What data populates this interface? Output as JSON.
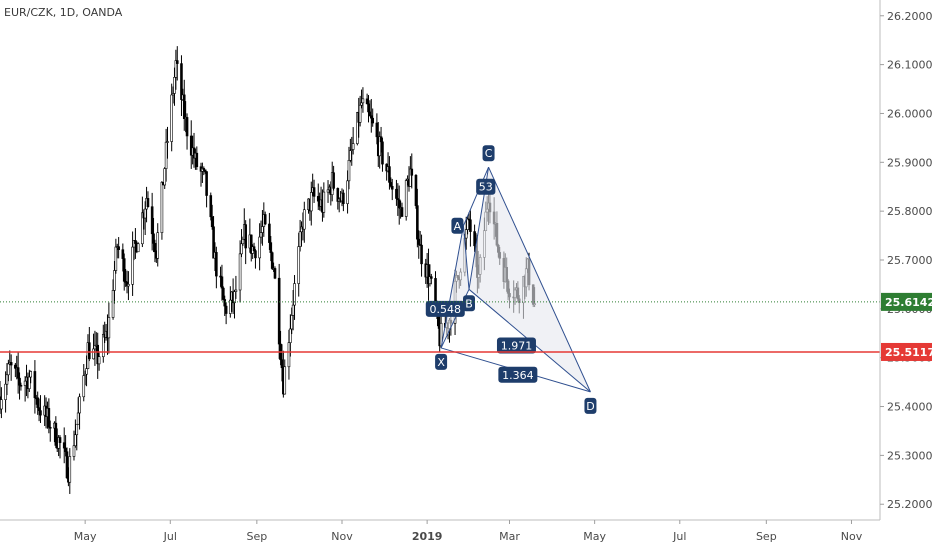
{
  "symbol_label": "EUR/CZK, 1D, OANDA",
  "colors": {
    "candle": "#000000",
    "pattern_line": "#2f4f8f",
    "pattern_fill": "#e6e8ee",
    "point_label_bg": "#1e3d6b",
    "green_tag": "#2e7d32",
    "red_tag": "#e53935",
    "green_line": "#2e7d32",
    "red_line": "#e53935"
  },
  "chart_data": {
    "type": "candlestick",
    "title": "",
    "xlabel": "",
    "ylabel": "",
    "ylim": [
      25.18,
      26.22
    ],
    "y_ticks": [
      "26.20000",
      "26.10000",
      "26.00000",
      "25.90000",
      "25.80000",
      "25.70000",
      "25.60000",
      "25.50000",
      "25.40000",
      "25.30000",
      "25.20000"
    ],
    "y_tick_values": [
      26.2,
      26.1,
      26.0,
      25.9,
      25.8,
      25.7,
      25.6,
      25.5,
      25.4,
      25.3,
      25.2
    ],
    "x_ticks": [
      "May",
      "Jul",
      "Sep",
      "Nov",
      "2019",
      "Mar",
      "May",
      "Jul",
      "Sep",
      "Nov"
    ],
    "x_tick_dates": [
      "2018-05-01",
      "2018-07-01",
      "2018-09-01",
      "2018-11-01",
      "2019-01-01",
      "2019-03-01",
      "2019-05-01",
      "2019-07-01",
      "2019-09-01",
      "2019-11-01"
    ],
    "x_range": [
      "2018-03-01",
      "2019-11-20"
    ],
    "price_tags": [
      {
        "value": "25.61424",
        "color": "green",
        "line": "dotted"
      },
      {
        "value": "25.51173",
        "color": "red",
        "line": "solid"
      }
    ],
    "price_path": [
      [
        "2018-03-01",
        25.42
      ],
      [
        "2018-03-08",
        25.48
      ],
      [
        "2018-03-15",
        25.45
      ],
      [
        "2018-03-22",
        25.46
      ],
      [
        "2018-03-29",
        25.4
      ],
      [
        "2018-04-05",
        25.37
      ],
      [
        "2018-04-12",
        25.33
      ],
      [
        "2018-04-19",
        25.27
      ],
      [
        "2018-04-26",
        25.38
      ],
      [
        "2018-05-03",
        25.52
      ],
      [
        "2018-05-10",
        25.5
      ],
      [
        "2018-05-17",
        25.55
      ],
      [
        "2018-05-24",
        25.73
      ],
      [
        "2018-05-31",
        25.66
      ],
      [
        "2018-06-07",
        25.74
      ],
      [
        "2018-06-14",
        25.83
      ],
      [
        "2018-06-21",
        25.72
      ],
      [
        "2018-06-28",
        25.92
      ],
      [
        "2018-07-05",
        26.1
      ],
      [
        "2018-07-12",
        25.98
      ],
      [
        "2018-07-19",
        25.9
      ],
      [
        "2018-07-26",
        25.86
      ],
      [
        "2018-08-02",
        25.7
      ],
      [
        "2018-08-09",
        25.6
      ],
      [
        "2018-08-16",
        25.62
      ],
      [
        "2018-08-23",
        25.75
      ],
      [
        "2018-08-30",
        25.72
      ],
      [
        "2018-09-06",
        25.77
      ],
      [
        "2018-09-13",
        25.69
      ],
      [
        "2018-09-20",
        25.45
      ],
      [
        "2018-09-27",
        25.62
      ],
      [
        "2018-10-04",
        25.78
      ],
      [
        "2018-10-11",
        25.83
      ],
      [
        "2018-10-18",
        25.81
      ],
      [
        "2018-10-25",
        25.86
      ],
      [
        "2018-11-01",
        25.82
      ],
      [
        "2018-11-08",
        25.92
      ],
      [
        "2018-11-15",
        26.02
      ],
      [
        "2018-11-22",
        25.98
      ],
      [
        "2018-11-29",
        25.92
      ],
      [
        "2018-12-06",
        25.86
      ],
      [
        "2018-12-13",
        25.8
      ],
      [
        "2018-12-20",
        25.88
      ],
      [
        "2018-12-27",
        25.72
      ],
      [
        "2019-01-03",
        25.66
      ],
      [
        "2019-01-10",
        25.54
      ],
      [
        "2019-01-17",
        25.58
      ],
      [
        "2019-01-24",
        25.68
      ],
      [
        "2019-01-31",
        25.78
      ],
      [
        "2019-02-07",
        25.66
      ],
      [
        "2019-02-14",
        25.84
      ],
      [
        "2019-02-21",
        25.72
      ],
      [
        "2019-02-28",
        25.65
      ],
      [
        "2019-03-07",
        25.63
      ],
      [
        "2019-03-14",
        25.68
      ],
      [
        "2019-03-19",
        25.61
      ]
    ],
    "pattern": {
      "points": [
        {
          "label": "X",
          "date": "2019-01-11",
          "price": 25.52,
          "tag_pos": "below"
        },
        {
          "label": "A",
          "date": "2019-01-27",
          "price": 25.77,
          "tag_pos": "left"
        },
        {
          "label": "B",
          "date": "2019-01-31",
          "price": 25.64,
          "tag_pos": "below"
        },
        {
          "label": "C",
          "date": "2019-02-14",
          "price": 25.89,
          "tag_pos": "above"
        },
        {
          "label": "D",
          "date": "2019-04-28",
          "price": 25.43,
          "tag_pos": "below"
        }
      ],
      "ratios": [
        {
          "text": "0.548",
          "date": "2019-01-14",
          "price": 25.6
        },
        {
          "text": "53",
          "date": "2019-02-12",
          "price": 25.85
        },
        {
          "text": "1.971",
          "date": "2019-03-06",
          "price": 25.525
        },
        {
          "text": "1.364",
          "date": "2019-03-07",
          "price": 25.465
        }
      ]
    }
  }
}
